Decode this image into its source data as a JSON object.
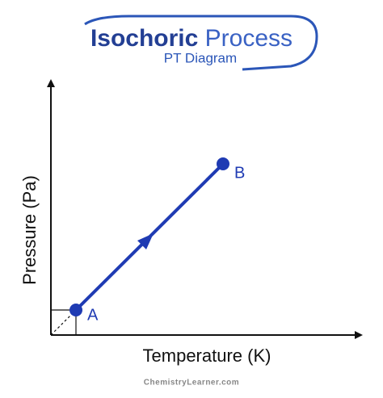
{
  "header": {
    "title_bold": "Isochoric",
    "title_light": "Process",
    "subtitle": "PT Diagram"
  },
  "diagram": {
    "y_axis_label": "Pressure (Pa)",
    "x_axis_label": "Temperature (K)",
    "point_a": "A",
    "point_b": "B"
  },
  "footer": {
    "credit": "ChemistryLearner.com"
  }
}
